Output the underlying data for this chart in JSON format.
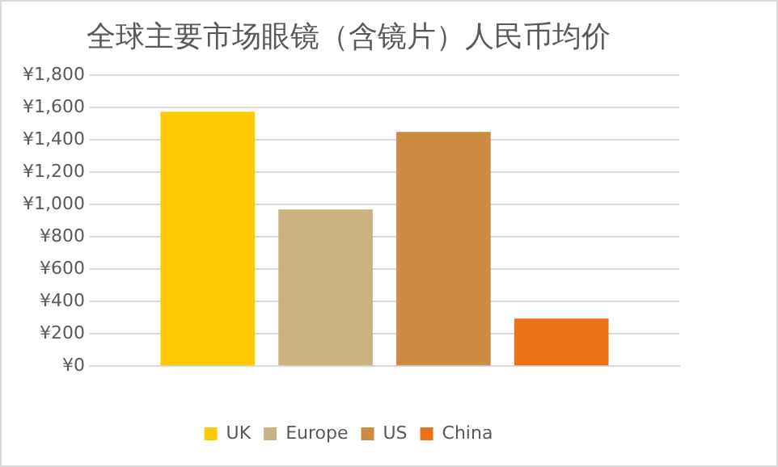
{
  "chart_data": {
    "type": "bar",
    "title": "全球主要市场眼镜（含镜片）人民币均价",
    "categories": [
      null
    ],
    "series": [
      {
        "name": "UK",
        "color": "#ffc906",
        "values": [
          1575
        ]
      },
      {
        "name": "Europe",
        "color": "#ccb180",
        "values": [
          970
        ]
      },
      {
        "name": "US",
        "color": "#cd8a40",
        "values": [
          1450
        ]
      },
      {
        "name": "China",
        "color": "#ec7117",
        "values": [
          295
        ]
      }
    ],
    "ylim": [
      0,
      1800
    ],
    "yticks": [
      {
        "value": 0,
        "label": "¥0"
      },
      {
        "value": 200,
        "label": "¥200"
      },
      {
        "value": 400,
        "label": "¥400"
      },
      {
        "value": 600,
        "label": "¥600"
      },
      {
        "value": 800,
        "label": "¥800"
      },
      {
        "value": 1000,
        "label": "¥1,000"
      },
      {
        "value": 1200,
        "label": "¥1,200"
      },
      {
        "value": 1400,
        "label": "¥1,400"
      },
      {
        "value": 1600,
        "label": "¥1,600"
      },
      {
        "value": 1800,
        "label": "¥1,800"
      }
    ],
    "grid": "y",
    "legend": "bottom"
  }
}
